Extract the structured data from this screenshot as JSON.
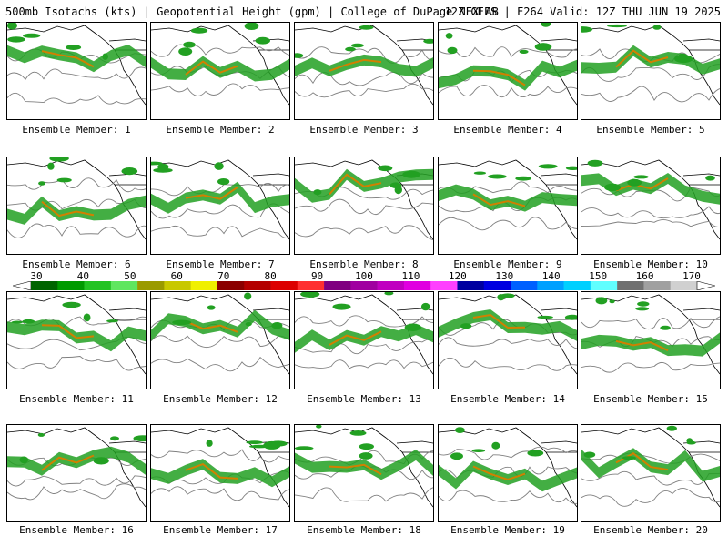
{
  "header": {
    "left": "500mb Isotachs (kts) | Geopotential Height (gpm) | College of DuPage NEXLAB",
    "right": "12Z GEFS | F264 Valid: 12Z THU JUN 19 2025"
  },
  "members": [
    {
      "label": "Ensemble Member: 1"
    },
    {
      "label": "Ensemble Member: 2"
    },
    {
      "label": "Ensemble Member: 3"
    },
    {
      "label": "Ensemble Member: 4"
    },
    {
      "label": "Ensemble Member: 5"
    },
    {
      "label": "Ensemble Member: 6"
    },
    {
      "label": "Ensemble Member: 7"
    },
    {
      "label": "Ensemble Member: 8"
    },
    {
      "label": "Ensemble Member: 9"
    },
    {
      "label": "Ensemble Member: 10"
    },
    {
      "label": "Ensemble Member: 11"
    },
    {
      "label": "Ensemble Member: 12"
    },
    {
      "label": "Ensemble Member: 13"
    },
    {
      "label": "Ensemble Member: 14"
    },
    {
      "label": "Ensemble Member: 15"
    },
    {
      "label": "Ensemble Member: 16"
    },
    {
      "label": "Ensemble Member: 17"
    },
    {
      "label": "Ensemble Member: 18"
    },
    {
      "label": "Ensemble Member: 19"
    },
    {
      "label": "Ensemble Member: 20"
    }
  ],
  "colorbar": {
    "labels": [
      "30",
      "40",
      "50",
      "60",
      "70",
      "80",
      "90",
      "100",
      "110",
      "120",
      "130",
      "140",
      "150",
      "160",
      "170"
    ],
    "colors": [
      "#006400",
      "#009a00",
      "#22c322",
      "#5fe65f",
      "#9a9a00",
      "#c8c800",
      "#f0f000",
      "#8b0000",
      "#b40000",
      "#dc0000",
      "#ff3030",
      "#800080",
      "#a000a0",
      "#c000c0",
      "#e000e0",
      "#ff40ff",
      "#0000a0",
      "#0000e0",
      "#0060ff",
      "#00a0ff",
      "#00d0ff",
      "#60ffff",
      "#707070",
      "#a0a0a0",
      "#d0d0d0"
    ]
  },
  "map": {
    "land_outline_color": "#000000",
    "height_contour_color": "#808080",
    "jet_fill_color": "#22a022",
    "jet_core_color": "#d08000"
  }
}
